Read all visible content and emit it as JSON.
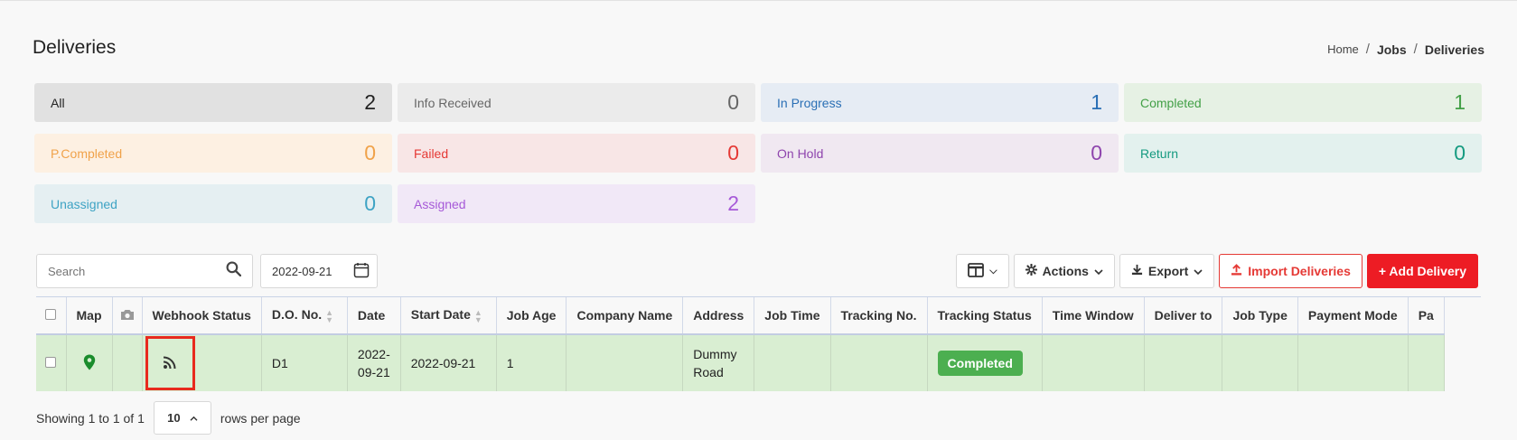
{
  "header": {
    "title": "Deliveries",
    "breadcrumb": [
      "Home",
      "Jobs",
      "Deliveries"
    ]
  },
  "status_cards": [
    {
      "label": "All",
      "count": "2",
      "bg": "#e1e1e1",
      "fg": "#222222"
    },
    {
      "label": "Info Received",
      "count": "0",
      "bg": "#ebebeb",
      "fg": "#666666"
    },
    {
      "label": "In Progress",
      "count": "1",
      "bg": "#e6ecf4",
      "fg": "#2a6fb5"
    },
    {
      "label": "Completed",
      "count": "1",
      "bg": "#e6f1e4",
      "fg": "#43a047"
    },
    {
      "label": "P.Completed",
      "count": "0",
      "bg": "#fdf0e2",
      "fg": "#f0a24a"
    },
    {
      "label": "Failed",
      "count": "0",
      "bg": "#f8e6e6",
      "fg": "#e53935"
    },
    {
      "label": "On Hold",
      "count": "0",
      "bg": "#f0e8f1",
      "fg": "#8e44ad"
    },
    {
      "label": "Return",
      "count": "0",
      "bg": "#e3f1ee",
      "fg": "#159a80"
    },
    {
      "label": "Unassigned",
      "count": "0",
      "bg": "#e5eff2",
      "fg": "#3ea3c4"
    },
    {
      "label": "Assigned",
      "count": "2",
      "bg": "#f1e8f7",
      "fg": "#a659d8"
    }
  ],
  "toolbar": {
    "search_placeholder": "Search",
    "date_value": "2022-09-21",
    "actions_label": "Actions",
    "export_label": "Export",
    "import_label": "Import Deliveries",
    "add_label": "+ Add Delivery"
  },
  "table": {
    "columns": [
      "Map",
      "",
      "Webhook Status",
      "D.O. No.",
      "Date",
      "Start Date",
      "Job Age",
      "Company Name",
      "Address",
      "Job Time",
      "Tracking No.",
      "Tracking Status",
      "Time Window",
      "Deliver to",
      "Job Type",
      "Payment Mode",
      "Pa"
    ],
    "row": {
      "do_no": "D1",
      "date_line1": "2022-",
      "date_line2": "09-21",
      "start_date": "2022-09-21",
      "job_age": "1",
      "address_line1": "Dummy",
      "address_line2": "Road",
      "tracking_status": "Completed"
    }
  },
  "footer": {
    "showing": "Showing 1 to 1 of 1",
    "per_page": "10",
    "rows_per_page": "rows per page"
  },
  "icons": {
    "map": "map-pin-icon",
    "photo": "camera-icon",
    "webhook": "rss-icon",
    "search": "search-icon",
    "calendar": "calendar-icon"
  }
}
